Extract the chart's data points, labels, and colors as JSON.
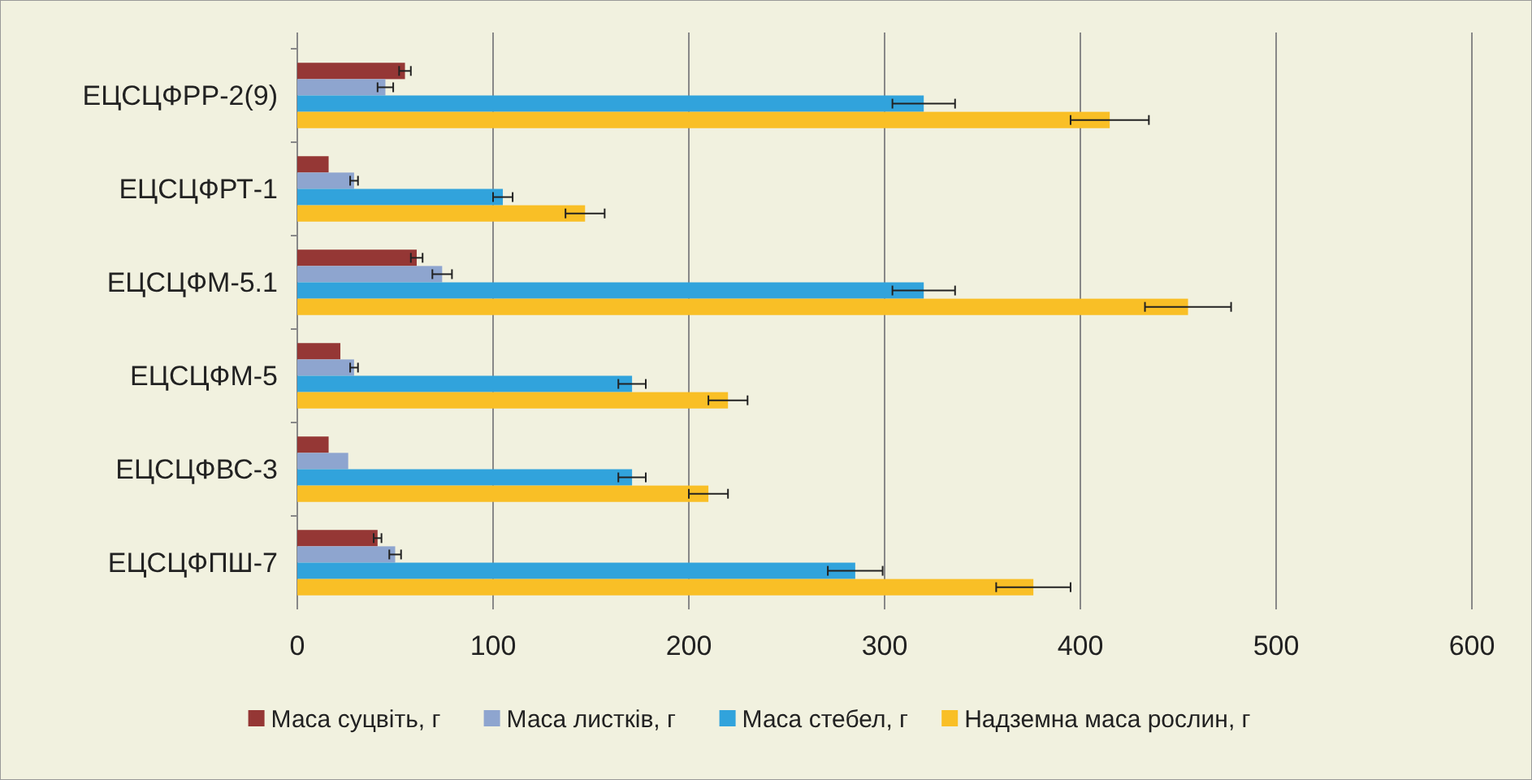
{
  "chart_data": {
    "type": "bar",
    "orientation": "horizontal",
    "categories": [
      "ЕЦСЦФРР-2(9)",
      "ЕЦСЦФРТ-1",
      "ЕЦСЦФМ-5.1",
      "ЕЦСЦФМ-5",
      "ЕЦСЦФВС-3",
      "ЕЦСЦФПШ-7"
    ],
    "series": [
      {
        "name": "Маса суцвіть, г",
        "color": "#953735",
        "values": [
          55,
          16,
          61,
          22,
          16,
          41
        ],
        "errors": [
          3,
          null,
          3,
          null,
          null,
          2
        ]
      },
      {
        "name": "Маса листків, г",
        "color": "#8ea5cf",
        "values": [
          45,
          29,
          74,
          29,
          26,
          50
        ],
        "errors": [
          4,
          2,
          5,
          2,
          null,
          3
        ]
      },
      {
        "name": "Маса стебел, г",
        "color": "#31a3dc",
        "values": [
          320,
          105,
          320,
          171,
          171,
          285
        ],
        "errors": [
          16,
          5,
          16,
          7,
          7,
          14
        ]
      },
      {
        "name": "Надземна маса рослин, г",
        "color": "#f9bf26",
        "values": [
          415,
          147,
          455,
          220,
          210,
          376
        ],
        "errors": [
          20,
          10,
          22,
          10,
          10,
          19
        ]
      }
    ],
    "xlim": [
      0,
      600
    ],
    "xticks": [
      0,
      100,
      200,
      300,
      400,
      500,
      600
    ],
    "grid": "x",
    "legend": "bottom"
  }
}
